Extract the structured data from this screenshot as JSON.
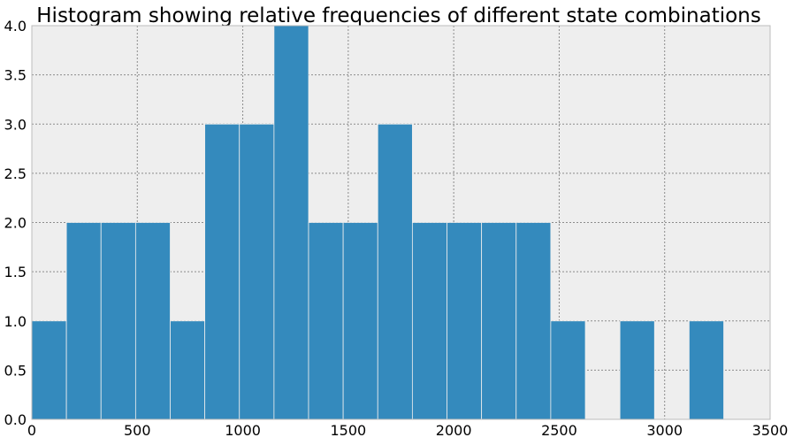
{
  "chart_data": {
    "type": "bar",
    "title": "Histogram showing relative frequencies of different state combinations",
    "xlabel": "",
    "ylabel": "",
    "xlim": [
      0,
      3500
    ],
    "ylim": [
      0,
      4.0
    ],
    "x_ticks": [
      0,
      500,
      1000,
      1500,
      2000,
      2500,
      3000,
      3500
    ],
    "x_tick_labels": [
      "0",
      "500",
      "1000",
      "1500",
      "2000",
      "2500",
      "3000",
      "3500"
    ],
    "y_ticks": [
      0,
      0.5,
      1.0,
      1.5,
      2.0,
      2.5,
      3.0,
      3.5,
      4.0
    ],
    "y_tick_labels": [
      "0.0",
      "0.5",
      "1.0",
      "1.5",
      "2.0",
      "2.5",
      "3.0",
      "3.5",
      "4.0"
    ],
    "grid": true,
    "bins": [
      {
        "start": 0,
        "end": 164,
        "count": 1
      },
      {
        "start": 164,
        "end": 328,
        "count": 2
      },
      {
        "start": 328,
        "end": 492,
        "count": 2
      },
      {
        "start": 492,
        "end": 656,
        "count": 2
      },
      {
        "start": 656,
        "end": 820,
        "count": 1
      },
      {
        "start": 820,
        "end": 984,
        "count": 3
      },
      {
        "start": 984,
        "end": 1148,
        "count": 3
      },
      {
        "start": 1148,
        "end": 1312,
        "count": 4
      },
      {
        "start": 1312,
        "end": 1476,
        "count": 2
      },
      {
        "start": 1476,
        "end": 1640,
        "count": 2
      },
      {
        "start": 1640,
        "end": 1804,
        "count": 3
      },
      {
        "start": 1804,
        "end": 1968,
        "count": 2
      },
      {
        "start": 1968,
        "end": 2132,
        "count": 2
      },
      {
        "start": 2132,
        "end": 2296,
        "count": 2
      },
      {
        "start": 2296,
        "end": 2460,
        "count": 2
      },
      {
        "start": 2460,
        "end": 2624,
        "count": 1
      },
      {
        "start": 2624,
        "end": 2788,
        "count": 0
      },
      {
        "start": 2788,
        "end": 2952,
        "count": 1
      },
      {
        "start": 2952,
        "end": 3116,
        "count": 0
      },
      {
        "start": 3116,
        "end": 3280,
        "count": 1
      }
    ],
    "colors": {
      "bar": "#348ABD",
      "bar_edge": "#eeeeee",
      "plot_bg": "#EEEEEE",
      "grid": "#8c8c8c",
      "frame": "#bcbcbc"
    }
  }
}
